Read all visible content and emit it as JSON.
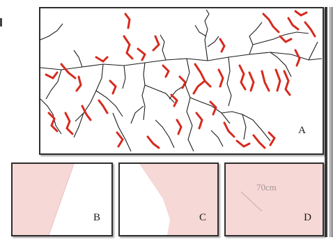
{
  "figure": {
    "panel_a": {
      "label": "A"
    },
    "panel_b": {
      "label": "B"
    },
    "panel_c": {
      "label": "C"
    },
    "panel_d": {
      "label": "D",
      "annotation": "70cm"
    }
  },
  "colors": {
    "highlight": "#d62a1e",
    "network": "#1c1c1c",
    "fill": "#f6d8d6",
    "frame": "#2e2e2e"
  }
}
